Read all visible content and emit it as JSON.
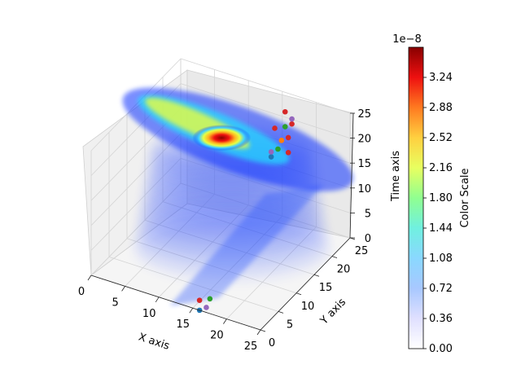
{
  "chart_data": {
    "type": "3d-volume-scatter",
    "xlabel": "X axis",
    "ylabel": "Y axis",
    "zlabel": "Time axis",
    "xlim": [
      0,
      25
    ],
    "ylim": [
      0,
      25
    ],
    "zlim": [
      0,
      25
    ],
    "x_ticks": [
      "0",
      "5",
      "10",
      "15",
      "20",
      "25"
    ],
    "y_ticks": [
      "0",
      "5",
      "10",
      "15",
      "20",
      "25"
    ],
    "z_ticks": [
      "0",
      "5",
      "10",
      "15",
      "20",
      "25"
    ],
    "grid": true,
    "colormap": "jet",
    "colorbar": {
      "label": "Color Scale",
      "offset_text": "1e−8",
      "range": [
        0,
        3.6e-08
      ],
      "ticks": [
        "0.00",
        "0.36",
        "0.72",
        "1.08",
        "1.44",
        "1.80",
        "2.16",
        "2.52",
        "2.88",
        "3.24"
      ]
    },
    "field": {
      "description_free": true,
      "hotspot": {
        "x": 2,
        "y": 19,
        "t": 19
      },
      "layers_t": [
        0,
        2,
        4,
        6,
        8,
        10,
        12,
        14,
        16,
        18,
        20
      ]
    },
    "trajectory_points": [
      {
        "x": 16,
        "y": 0,
        "t": 0,
        "color": "#1f77b4"
      },
      {
        "x": 17,
        "y": 0,
        "t": 1,
        "color": "#9467bd"
      },
      {
        "x": 16,
        "y": 0,
        "t": 2,
        "color": "#d62728"
      },
      {
        "x": 17,
        "y": 1,
        "t": 2,
        "color": "#2ca02c"
      },
      {
        "x": 16,
        "y": 20,
        "t": 16,
        "color": "#1f77b4"
      },
      {
        "x": 16,
        "y": 20,
        "t": 17,
        "color": "#9467bd"
      },
      {
        "x": 17,
        "y": 20,
        "t": 18,
        "color": "#2ca02c"
      },
      {
        "x": 17,
        "y": 21,
        "t": 19,
        "color": "#ff7f0e"
      },
      {
        "x": 18,
        "y": 21,
        "t": 20,
        "color": "#d62728"
      },
      {
        "x": 17,
        "y": 22,
        "t": 21,
        "color": "#2ca02c"
      },
      {
        "x": 18,
        "y": 22,
        "t": 22,
        "color": "#d62728"
      },
      {
        "x": 18,
        "y": 22,
        "t": 23,
        "color": "#9467bd"
      },
      {
        "x": 17,
        "y": 22,
        "t": 24,
        "color": "#d62728"
      },
      {
        "x": 16,
        "y": 21,
        "t": 21,
        "color": "#d62728"
      },
      {
        "x": 18,
        "y": 21,
        "t": 17,
        "color": "#d62728"
      }
    ]
  }
}
